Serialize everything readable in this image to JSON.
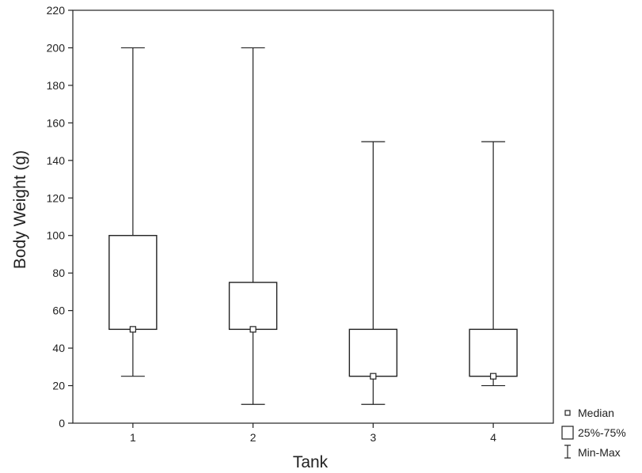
{
  "chart_data": {
    "type": "boxplot",
    "title": "",
    "xlabel": "Tank",
    "ylabel": "Body Weight  (g)",
    "ylim": [
      0,
      220
    ],
    "yticks": [
      0,
      20,
      40,
      60,
      80,
      100,
      120,
      140,
      160,
      180,
      200,
      220
    ],
    "categories": [
      "1",
      "2",
      "3",
      "4"
    ],
    "boxes": [
      {
        "category": "1",
        "min": 25,
        "q1": 50,
        "median": 50,
        "q3": 100,
        "max": 200
      },
      {
        "category": "2",
        "min": 10,
        "q1": 50,
        "median": 50,
        "q3": 75,
        "max": 200
      },
      {
        "category": "3",
        "min": 10,
        "q1": 25,
        "median": 25,
        "q3": 50,
        "max": 150
      },
      {
        "category": "4",
        "min": 20,
        "q1": 25,
        "median": 25,
        "q3": 50,
        "max": 150
      }
    ],
    "legend": {
      "position": "bottom-right",
      "items": [
        {
          "symbol": "median-square",
          "label": "Median"
        },
        {
          "symbol": "box",
          "label": "25%-75%"
        },
        {
          "symbol": "whisker",
          "label": "Min-Max"
        }
      ]
    },
    "grid": false
  }
}
